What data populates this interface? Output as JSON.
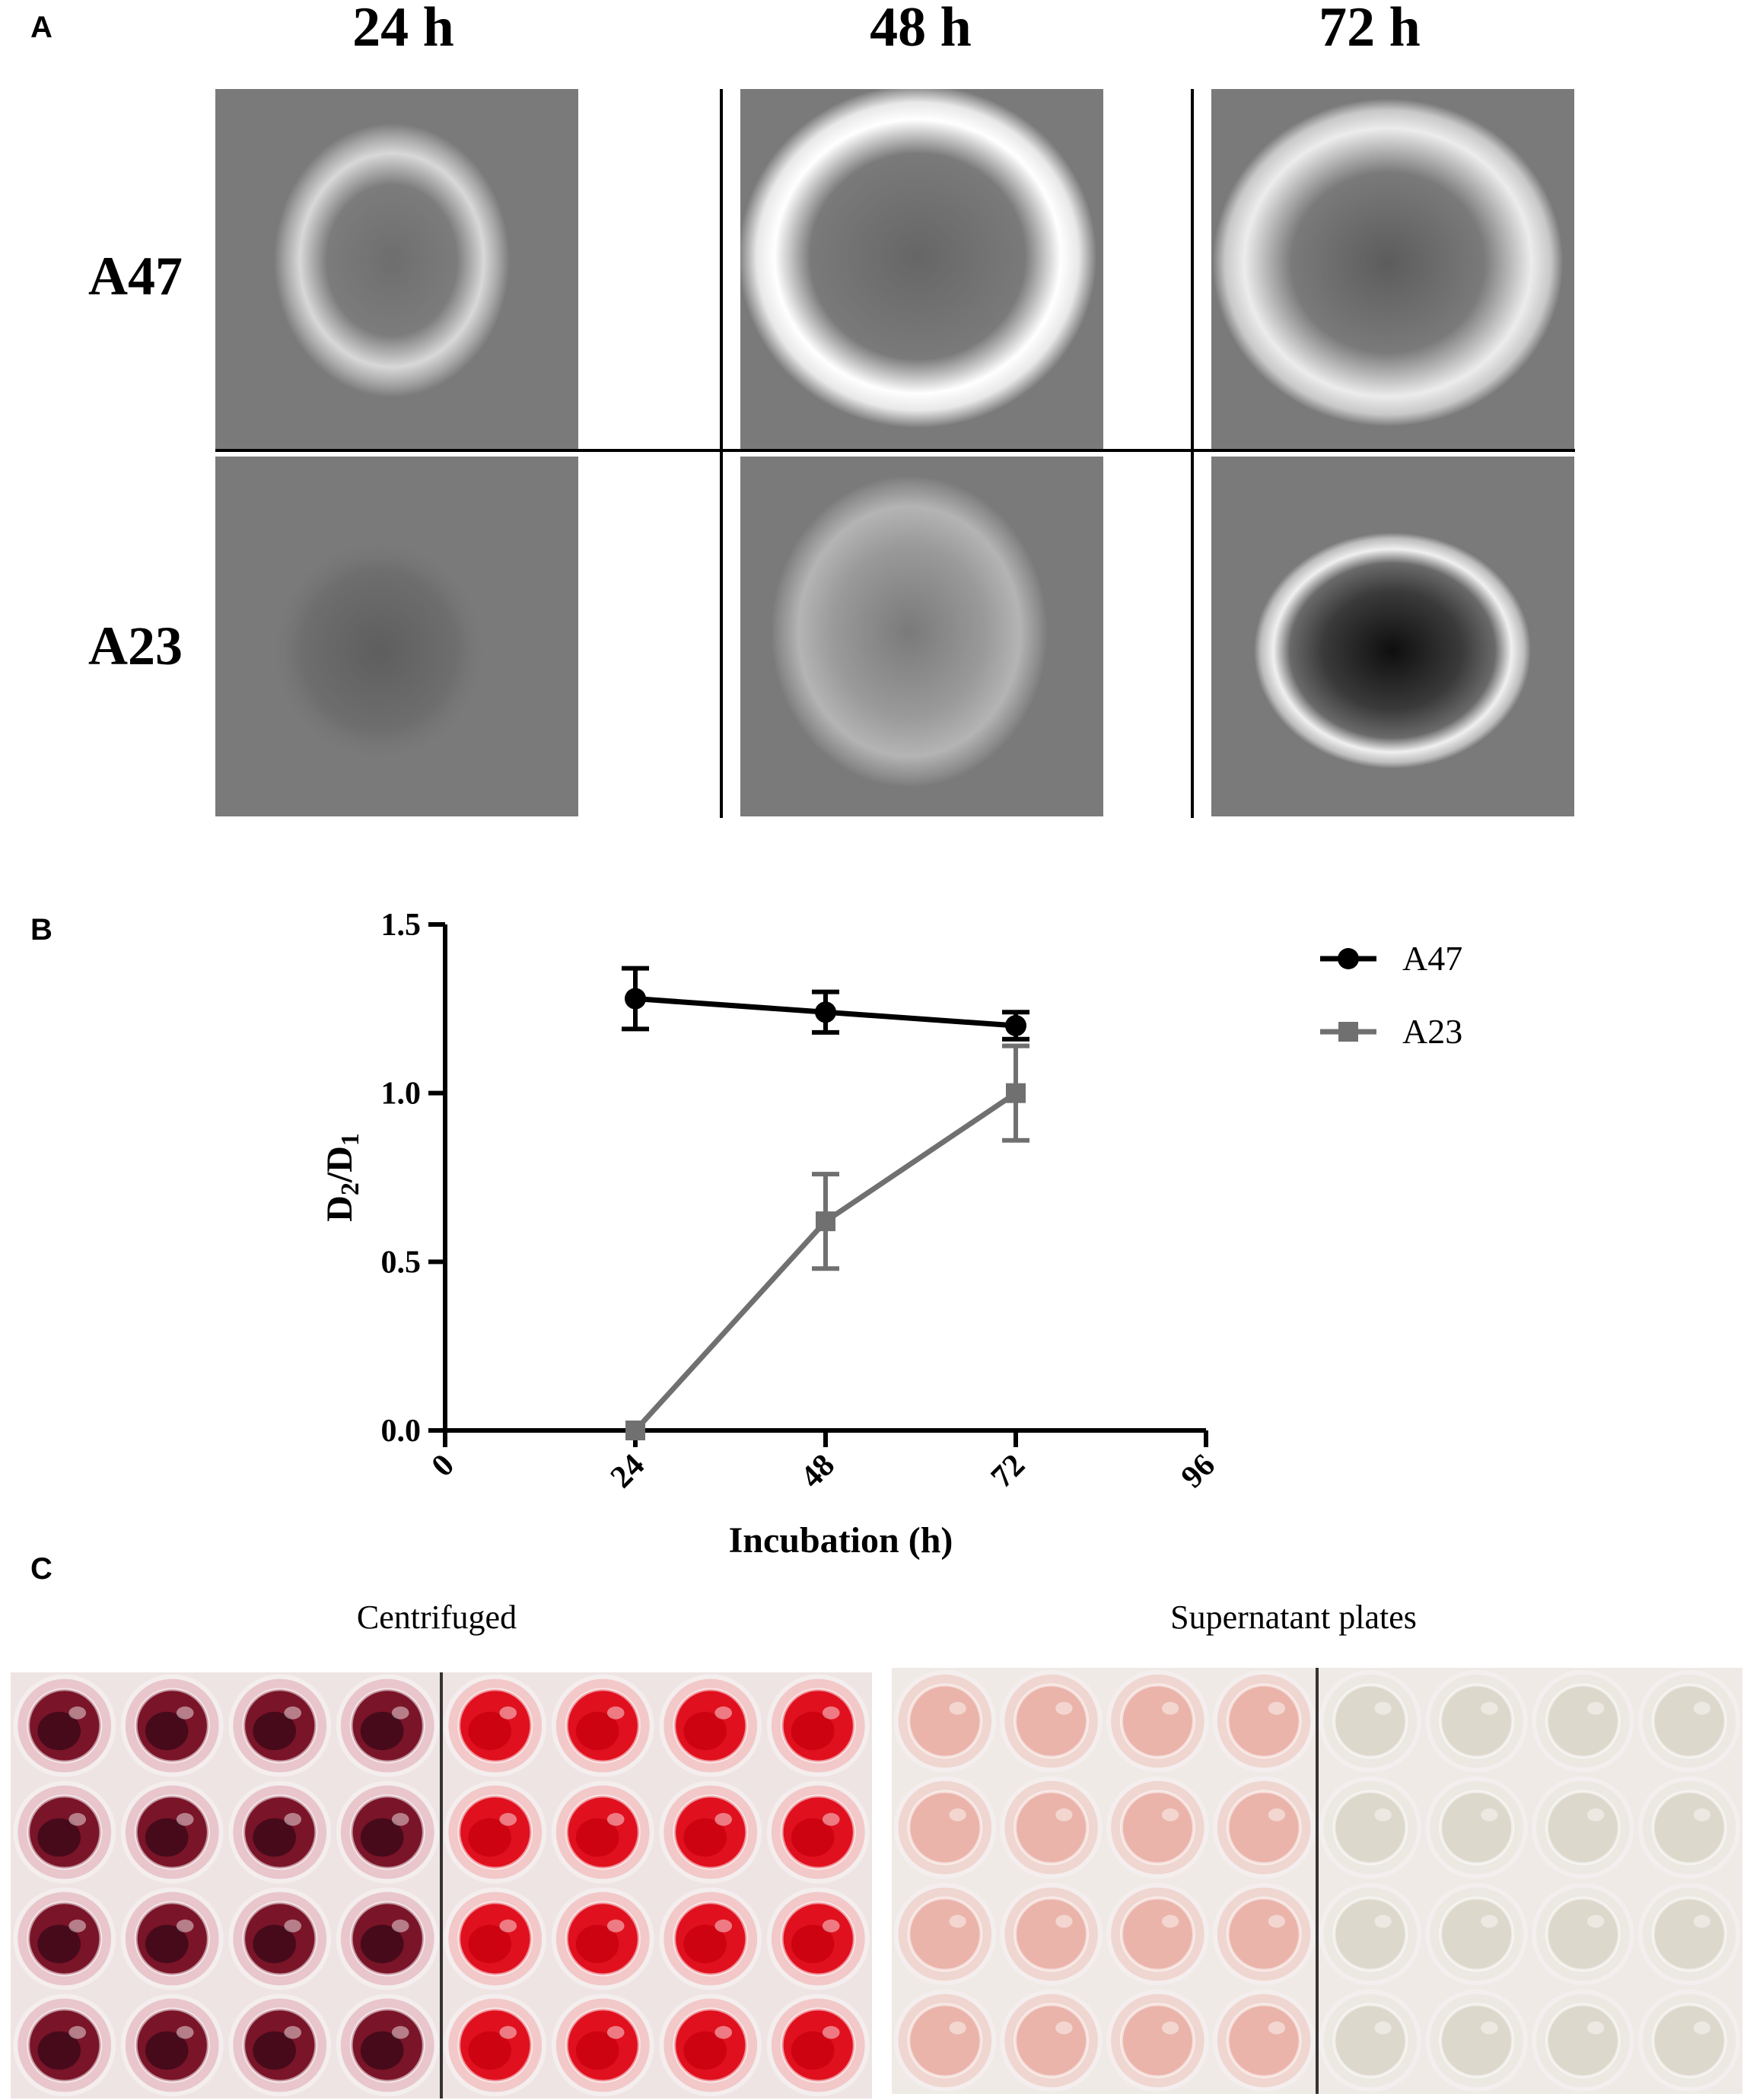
{
  "panel_a": {
    "letter": "A",
    "columns": [
      "24 h",
      "48 h",
      "72 h"
    ],
    "rows": [
      "A47",
      "A23"
    ]
  },
  "panel_b": {
    "letter": "B"
  },
  "panel_c": {
    "letter": "C",
    "left_caption": "Centrifuged",
    "right_caption": "Supernatant plates"
  },
  "colors": {
    "a47": "#000000",
    "a23": "#707070",
    "blood_dark": "#7a1428",
    "blood_bright": "#e0101e",
    "supernatant_pink": "#eab4aa",
    "supernatant_clear": "#ddd8cc"
  },
  "chart_data": {
    "type": "line",
    "xlabel": "Incubation (h)",
    "ylabel_main": "D",
    "ylabel_sub1": "2",
    "ylabel_slash": "/D",
    "ylabel_sub2": "1",
    "xlim": [
      0,
      96
    ],
    "ylim": [
      0,
      1.5
    ],
    "x_ticks": [
      "0",
      "24",
      "48",
      "72",
      "96"
    ],
    "y_ticks": [
      "0.0",
      "0.5",
      "1.0",
      "1.5"
    ],
    "legend_position": "top-right",
    "series": [
      {
        "name": "A47",
        "marker": "circle",
        "x": [
          24,
          48,
          72
        ],
        "y": [
          1.28,
          1.24,
          1.2
        ],
        "err": [
          0.09,
          0.06,
          0.04
        ]
      },
      {
        "name": "A23",
        "marker": "square",
        "x": [
          24,
          48,
          72
        ],
        "y": [
          0.0,
          0.62,
          1.0
        ],
        "err": [
          0.0,
          0.14,
          0.14
        ]
      }
    ]
  }
}
